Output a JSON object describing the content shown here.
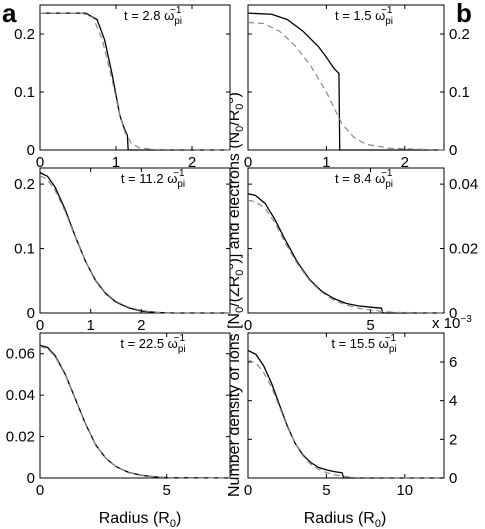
{
  "panel_letters": {
    "left": "a",
    "right": "b"
  },
  "ylabel": "Number density of ions [N0/(ZR0^3)] and electrons (N0/R0^3)",
  "ylabel_parts": {
    "p1": "Number density of ions [N",
    "s1": "0",
    "p2": "/(ZR",
    "s2": "0",
    "sup2": "3",
    "p3": ")] and electrons (N",
    "s3": "0",
    "p4": "/R",
    "s4": "0",
    "sup4": "3",
    "p5": ")"
  },
  "xlabel_left": {
    "main": "Radius (R",
    "sub": "0",
    "close": ")"
  },
  "xlabel_right": {
    "main": "Radius (R",
    "sub": "0",
    "close": ")"
  },
  "exponent_label": {
    "base": "x 10",
    "exp": "−3"
  },
  "styles": {
    "ion_color": "#000000",
    "electron_color": "#8a8a8a",
    "electron_dash": "dashed"
  },
  "chart_data": [
    {
      "id": "a1",
      "type": "line",
      "annotation": {
        "pre": "t = 2.8 ω",
        "sub": "pi",
        "sup": "−1"
      },
      "xlim": [
        0,
        2.5
      ],
      "ylim": [
        0,
        0.25
      ],
      "xticks": [
        0,
        1,
        2
      ],
      "xtick_labels": [
        "0",
        "1",
        "2"
      ],
      "yticks": [
        0,
        0.1,
        0.2
      ],
      "ytick_labels": [
        "0",
        "0.1",
        "0.2"
      ],
      "y_axis_side": "left",
      "series": [
        {
          "role": "ions",
          "x": [
            0,
            0.6,
            0.75,
            0.85,
            0.95,
            1.05,
            1.1,
            1.15,
            1.16,
            1.2,
            2.5
          ],
          "y": [
            0.236,
            0.236,
            0.225,
            0.19,
            0.13,
            0.06,
            0.04,
            0.025,
            0.0,
            0.0,
            0.0
          ]
        },
        {
          "role": "electrons",
          "x": [
            0,
            0.55,
            0.7,
            0.82,
            0.95,
            1.05,
            1.12,
            1.2,
            1.3,
            1.5,
            2.5
          ],
          "y": [
            0.236,
            0.236,
            0.228,
            0.19,
            0.12,
            0.06,
            0.03,
            0.012,
            0.004,
            0.001,
            0.0
          ]
        }
      ]
    },
    {
      "id": "b1",
      "type": "line",
      "annotation": {
        "pre": "t = 1.5 ω",
        "sub": "pi",
        "sup": "−1"
      },
      "xlim": [
        0,
        2.5
      ],
      "ylim": [
        0,
        0.25
      ],
      "xticks": [
        0,
        1,
        2
      ],
      "xtick_labels": [
        "0",
        "1",
        "2"
      ],
      "yticks": [
        0,
        0.1,
        0.2
      ],
      "ytick_labels": [
        "0",
        "0.1",
        "0.2"
      ],
      "y_axis_side": "right",
      "series": [
        {
          "role": "ions",
          "x": [
            0,
            0.3,
            0.5,
            0.7,
            0.9,
            1.0,
            1.1,
            1.16,
            1.17,
            1.3,
            2.5
          ],
          "y": [
            0.236,
            0.234,
            0.225,
            0.205,
            0.178,
            0.16,
            0.14,
            0.132,
            0.0,
            0.0,
            0.0
          ]
        },
        {
          "role": "electrons",
          "x": [
            0,
            0.2,
            0.4,
            0.6,
            0.8,
            1.0,
            1.1,
            1.2,
            1.35,
            1.5,
            1.8,
            2.5
          ],
          "y": [
            0.22,
            0.218,
            0.205,
            0.18,
            0.145,
            0.1,
            0.072,
            0.045,
            0.022,
            0.01,
            0.003,
            0.0
          ]
        }
      ]
    },
    {
      "id": "a2",
      "type": "line",
      "annotation": {
        "pre": "t = 11.2 ω",
        "sub": "pi",
        "sup": "−1"
      },
      "xlim": [
        0,
        3.75
      ],
      "ylim": [
        0,
        0.225
      ],
      "xticks": [
        0,
        1,
        2
      ],
      "xtick_labels": [
        "0",
        "1",
        "2"
      ],
      "yticks": [
        0,
        0.1,
        0.2
      ],
      "ytick_labels": [
        "0",
        "0.1",
        "0.2"
      ],
      "y_axis_side": "left",
      "series": [
        {
          "role": "ions",
          "x": [
            0,
            0.15,
            0.3,
            0.5,
            0.7,
            0.9,
            1.1,
            1.3,
            1.5,
            1.75,
            2.0,
            2.3,
            2.6,
            3.75
          ],
          "y": [
            0.218,
            0.212,
            0.195,
            0.16,
            0.118,
            0.08,
            0.05,
            0.03,
            0.017,
            0.008,
            0.003,
            0.001,
            0.0,
            0.0
          ]
        },
        {
          "role": "electrons",
          "x": [
            0,
            0.15,
            0.3,
            0.5,
            0.7,
            0.9,
            1.1,
            1.3,
            1.5,
            1.75,
            2.0,
            2.3,
            2.6,
            3.75
          ],
          "y": [
            0.213,
            0.207,
            0.19,
            0.157,
            0.117,
            0.08,
            0.051,
            0.031,
            0.018,
            0.009,
            0.004,
            0.001,
            0.0,
            0.0
          ]
        }
      ]
    },
    {
      "id": "b2",
      "type": "line",
      "annotation": {
        "pre": "t = 8.4 ω",
        "sub": "pi",
        "sup": "−1"
      },
      "xlim": [
        0,
        8
      ],
      "ylim": [
        0,
        0.045
      ],
      "xticks": [
        0,
        5
      ],
      "xtick_labels": [
        "0",
        "5"
      ],
      "yticks": [
        0,
        0.02,
        0.04
      ],
      "ytick_labels": [
        "0",
        "0.02",
        "0.04"
      ],
      "y_axis_side": "right",
      "series": [
        {
          "role": "ions",
          "x": [
            0,
            0.3,
            0.7,
            1.1,
            1.5,
            2.0,
            2.5,
            3.0,
            3.5,
            4.0,
            4.5,
            5.0,
            5.45,
            5.5,
            8
          ],
          "y": [
            0.037,
            0.0365,
            0.034,
            0.029,
            0.023,
            0.016,
            0.0105,
            0.0068,
            0.0045,
            0.003,
            0.0022,
            0.0018,
            0.0015,
            0.0,
            0.0
          ]
        },
        {
          "role": "electrons",
          "x": [
            0,
            0.3,
            0.7,
            1.1,
            1.5,
            2.0,
            2.5,
            3.0,
            3.5,
            4.0,
            4.5,
            5.0,
            5.5,
            6.0,
            8
          ],
          "y": [
            0.035,
            0.0345,
            0.0325,
            0.028,
            0.022,
            0.0155,
            0.0102,
            0.0065,
            0.004,
            0.0025,
            0.0015,
            0.0009,
            0.0005,
            0.0002,
            0.0
          ]
        }
      ]
    },
    {
      "id": "a3",
      "type": "line",
      "annotation": {
        "pre": "t = 22.5 ω",
        "sub": "pi",
        "sup": "−1"
      },
      "xlim": [
        0,
        7.5
      ],
      "ylim": [
        0,
        0.07
      ],
      "xticks": [
        0,
        5
      ],
      "xtick_labels": [
        "0",
        "5"
      ],
      "yticks": [
        0,
        0.02,
        0.04,
        0.06
      ],
      "ytick_labels": [
        "0",
        "0.02",
        "0.04",
        "0.06"
      ],
      "y_axis_side": "left",
      "series": [
        {
          "role": "ions",
          "x": [
            0,
            0.3,
            0.6,
            1.0,
            1.4,
            1.8,
            2.2,
            2.6,
            3.0,
            3.5,
            4.0,
            4.5,
            5.0,
            7.5
          ],
          "y": [
            0.064,
            0.063,
            0.059,
            0.05,
            0.038,
            0.026,
            0.016,
            0.0095,
            0.0055,
            0.0027,
            0.0013,
            0.0006,
            0.0002,
            0.0
          ]
        },
        {
          "role": "electrons",
          "x": [
            0,
            0.3,
            0.6,
            1.0,
            1.4,
            1.8,
            2.2,
            2.6,
            3.0,
            3.5,
            4.0,
            4.5,
            5.0,
            7.5
          ],
          "y": [
            0.0635,
            0.0625,
            0.0585,
            0.0497,
            0.0378,
            0.0259,
            0.016,
            0.0095,
            0.0055,
            0.0027,
            0.0013,
            0.0006,
            0.0002,
            0.0
          ]
        }
      ]
    },
    {
      "id": "b3",
      "type": "line",
      "annotation": {
        "pre": "t = 15.5 ω",
        "sub": "pi",
        "sup": "−1"
      },
      "xlim": [
        0,
        12.5
      ],
      "ylim": [
        0,
        7.5
      ],
      "xticks": [
        0,
        5,
        10
      ],
      "xtick_labels": [
        "0",
        "5",
        "10"
      ],
      "yticks": [
        0,
        2,
        4,
        6
      ],
      "ytick_labels": [
        "0",
        "2",
        "4",
        "6"
      ],
      "y_axis_side": "right",
      "y_units_note": "values ×10^-3",
      "series": [
        {
          "role": "ions",
          "x": [
            0,
            0.5,
            1.0,
            1.5,
            2.0,
            2.5,
            3.0,
            3.5,
            4.0,
            4.5,
            5.0,
            5.5,
            6.0,
            6.1,
            12.5
          ],
          "y": [
            6.6,
            6.4,
            5.8,
            4.9,
            3.8,
            2.7,
            1.8,
            1.2,
            0.8,
            0.55,
            0.42,
            0.33,
            0.27,
            0.0,
            0.0
          ]
        },
        {
          "role": "electrons",
          "x": [
            0,
            0.5,
            1.0,
            1.5,
            2.0,
            2.5,
            3.0,
            3.5,
            4.0,
            4.5,
            5.0,
            5.5,
            6.0,
            6.5,
            7.0,
            12.5
          ],
          "y": [
            6.1,
            5.95,
            5.45,
            4.7,
            3.7,
            2.65,
            1.8,
            1.15,
            0.72,
            0.45,
            0.28,
            0.17,
            0.1,
            0.05,
            0.02,
            0.0
          ]
        }
      ]
    }
  ]
}
